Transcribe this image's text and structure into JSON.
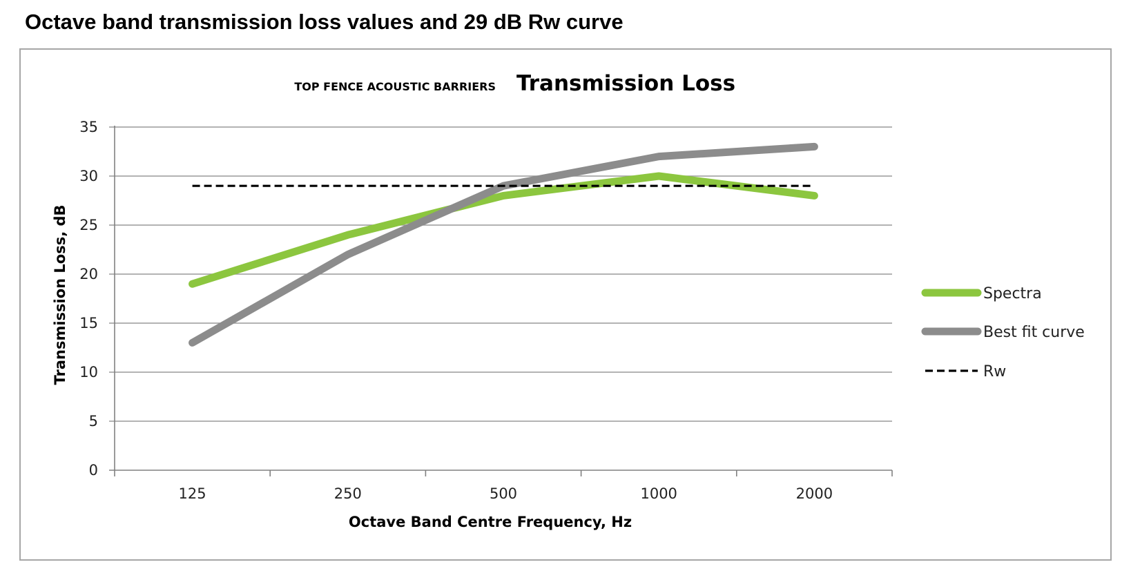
{
  "page": {
    "heading": "Octave band transmission loss values and 29 dB Rw curve"
  },
  "chart_data": {
    "type": "line",
    "title_prefix": "TOP FENCE ACOUSTIC BARRIERS",
    "title": "Transmission Loss",
    "xlabel": "Octave Band Centre Frequency, Hz",
    "ylabel": "Transmission Loss, dB",
    "categories": [
      "125",
      "250",
      "500",
      "1000",
      "2000"
    ],
    "ylim": [
      0,
      35
    ],
    "yticks": [
      0,
      5,
      10,
      15,
      20,
      25,
      30,
      35
    ],
    "grid": true,
    "legend_position": "right",
    "series": [
      {
        "name": "Spectra",
        "values": [
          19,
          24,
          28,
          30,
          28
        ],
        "color": "#8cc63f",
        "style": "solid"
      },
      {
        "name": "Best fit curve",
        "values": [
          13,
          22,
          29,
          32,
          33
        ],
        "color": "#8c8c8c",
        "style": "solid"
      },
      {
        "name": "Rw",
        "values": [
          29,
          29,
          29,
          29,
          29
        ],
        "color": "#000000",
        "style": "dashed"
      }
    ]
  }
}
